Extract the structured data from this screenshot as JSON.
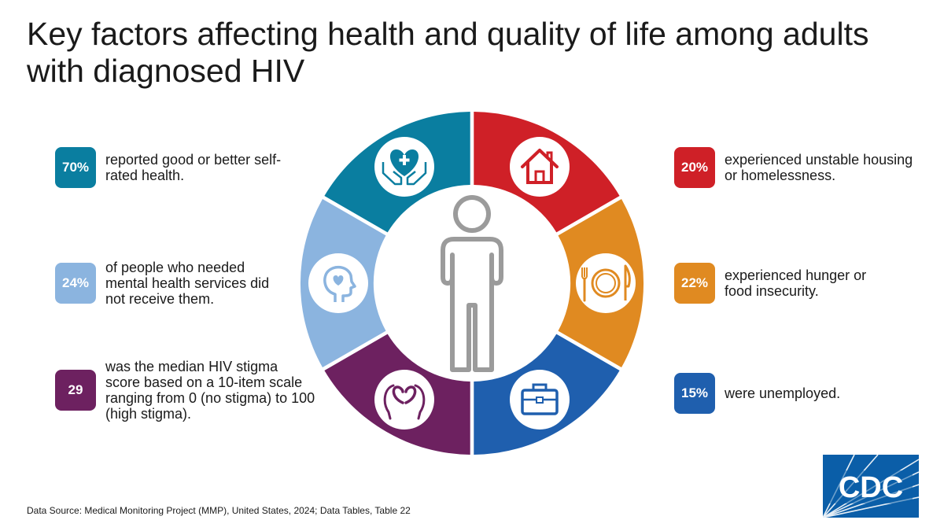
{
  "title": "Key factors affecting health and quality of life among adults with diagnosed HIV",
  "stats": {
    "health": {
      "value": "70%",
      "text": "reported good or better self-rated health.",
      "color": "#0a7ea0"
    },
    "mental": {
      "value": "24%",
      "text": "of people who needed mental health services did not receive them.",
      "color": "#8bb4df"
    },
    "stigma": {
      "value": "29",
      "text": "was the median HIV stigma score based on a 10-item scale ranging from 0 (no stigma) to 100 (high stigma).",
      "color": "#6d2160"
    },
    "housing": {
      "value": "20%",
      "text": "experienced unstable housing or homelessness.",
      "color": "#cf2027"
    },
    "hunger": {
      "value": "22%",
      "text": "experienced hunger or food insecurity.",
      "color": "#e08a21"
    },
    "employment": {
      "value": "15%",
      "text": "were unemployed.",
      "color": "#1f5fae"
    }
  },
  "icons": [
    "health-care-icon",
    "house-icon",
    "plate-cutlery-icon",
    "briefcase-icon",
    "heart-hands-icon",
    "mind-heart-icon",
    "person-icon"
  ],
  "source": "Data Source: Medical Monitoring Project (MMP), United States, 2024; Data Tables, Table 22",
  "logo": {
    "text": "CDC",
    "color": "#0b5ea8"
  }
}
